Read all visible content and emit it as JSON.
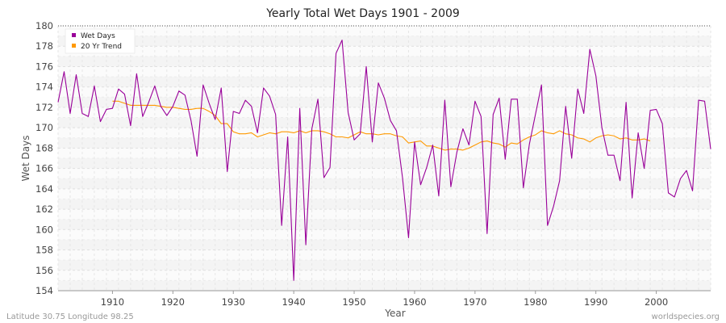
{
  "chart_data": {
    "type": "line",
    "title": "Yearly Total Wet Days 1901 - 2009",
    "xlabel": "Year",
    "ylabel": "Wet Days",
    "xlim": [
      1901,
      2009
    ],
    "ylim": [
      154,
      180
    ],
    "xticks": [
      1910,
      1920,
      1930,
      1940,
      1950,
      1960,
      1970,
      1980,
      1990,
      2000
    ],
    "yticks": [
      154,
      156,
      158,
      160,
      162,
      164,
      166,
      168,
      170,
      172,
      174,
      176,
      178,
      180
    ],
    "grid": true,
    "legend_position": "top-left",
    "series": [
      {
        "name": "Wet Days",
        "color": "#990099",
        "x_start": 1901,
        "values": [
          172.5,
          175.5,
          171.4,
          175.2,
          171.4,
          171.1,
          174.1,
          170.6,
          171.8,
          171.9,
          173.8,
          173.3,
          170.2,
          175.3,
          171.1,
          172.5,
          174.1,
          172.1,
          171.2,
          172.1,
          173.6,
          173.2,
          170.7,
          167.2,
          174.2,
          172.4,
          170.8,
          173.9,
          165.7,
          171.6,
          171.4,
          172.7,
          172.1,
          169.5,
          173.9,
          173.1,
          171.3,
          160.4,
          169.1,
          155.0,
          171.9,
          158.5,
          169.9,
          172.8,
          165.1,
          166.1,
          177.3,
          178.6,
          171.5,
          168.8,
          169.4,
          176.0,
          168.6,
          174.4,
          172.9,
          170.7,
          169.7,
          165.1,
          159.2,
          168.6,
          164.4,
          166.1,
          168.3,
          163.3,
          172.7,
          164.2,
          167.6,
          169.9,
          168.3,
          172.6,
          171.1,
          159.6,
          171.3,
          172.9,
          166.9,
          172.8,
          172.8,
          164.1,
          168.4,
          171.3,
          174.2,
          160.4,
          162.3,
          164.8,
          172.1,
          167.0,
          173.8,
          171.4,
          177.7,
          175.1,
          170.0,
          167.3,
          167.3,
          164.8,
          172.5,
          163.1,
          169.5,
          166.0,
          171.7,
          171.8,
          170.4,
          163.6,
          163.2,
          165.0,
          165.8,
          163.8,
          172.7,
          172.6,
          167.9
        ]
      },
      {
        "name": "20 Yr Trend",
        "color": "#ff9900",
        "x_start": 1910,
        "values": [
          172.6,
          172.6,
          172.4,
          172.2,
          172.2,
          172.2,
          172.2,
          172.2,
          172.1,
          172.0,
          172.0,
          171.9,
          171.8,
          171.8,
          171.9,
          171.9,
          171.6,
          171.2,
          170.4,
          170.4,
          169.6,
          169.4,
          169.4,
          169.5,
          169.1,
          169.3,
          169.5,
          169.4,
          169.6,
          169.6,
          169.5,
          169.7,
          169.5,
          169.7,
          169.7,
          169.6,
          169.4,
          169.1,
          169.1,
          169.0,
          169.3,
          169.6,
          169.4,
          169.4,
          169.3,
          169.4,
          169.4,
          169.2,
          169.1,
          168.5,
          168.6,
          168.7,
          168.2,
          168.2,
          168.0,
          167.8,
          167.9,
          167.9,
          167.8,
          168.0,
          168.3,
          168.6,
          168.7,
          168.5,
          168.4,
          168.1,
          168.5,
          168.4,
          168.8,
          169.1,
          169.3,
          169.7,
          169.5,
          169.4,
          169.7,
          169.4,
          169.3,
          169.0,
          168.9,
          168.6,
          169.0,
          169.2,
          169.3,
          169.2,
          168.9,
          169.0,
          168.8,
          168.8,
          168.9,
          168.7
        ]
      }
    ]
  },
  "footer": {
    "location": "Latitude 30.75 Longitude 98.25",
    "source": "worldspecies.org"
  }
}
